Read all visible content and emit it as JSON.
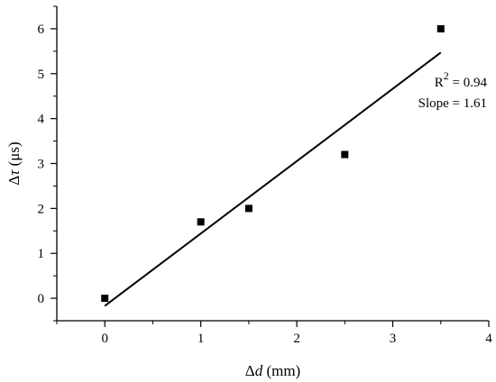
{
  "chart_data": {
    "type": "scatter",
    "xlabel": {
      "symbol": "Δ",
      "var": "d",
      "unit": " (mm)"
    },
    "ylabel": {
      "symbol": "Δ",
      "var": "τ",
      "unit": " (μs)"
    },
    "xlim": [
      -0.5,
      4
    ],
    "ylim": [
      -0.5,
      6.5
    ],
    "xticks": [
      0,
      1,
      2,
      3,
      4
    ],
    "yticks": [
      0,
      1,
      2,
      3,
      4,
      5,
      6
    ],
    "x_minor_ticks": [
      -0.5,
      0.5,
      1.5,
      2.5,
      3.5
    ],
    "y_minor_ticks": [
      -0.5,
      0.5,
      1.5,
      2.5,
      3.5,
      4.5,
      5.5,
      6.5
    ],
    "points": [
      {
        "x": 0,
        "y": 0
      },
      {
        "x": 1,
        "y": 1.7
      },
      {
        "x": 1.5,
        "y": 2.0
      },
      {
        "x": 2.5,
        "y": 3.2
      },
      {
        "x": 3.5,
        "y": 6.0
      }
    ],
    "fit_line": {
      "x": [
        0,
        3.5
      ],
      "y": [
        -0.17,
        5.47
      ]
    },
    "annotations": {
      "r2_base": "R",
      "r2_sup": "2",
      "r2_value": " = 0.94",
      "slope": "Slope = 1.61"
    },
    "grid": false,
    "legend": "none"
  }
}
